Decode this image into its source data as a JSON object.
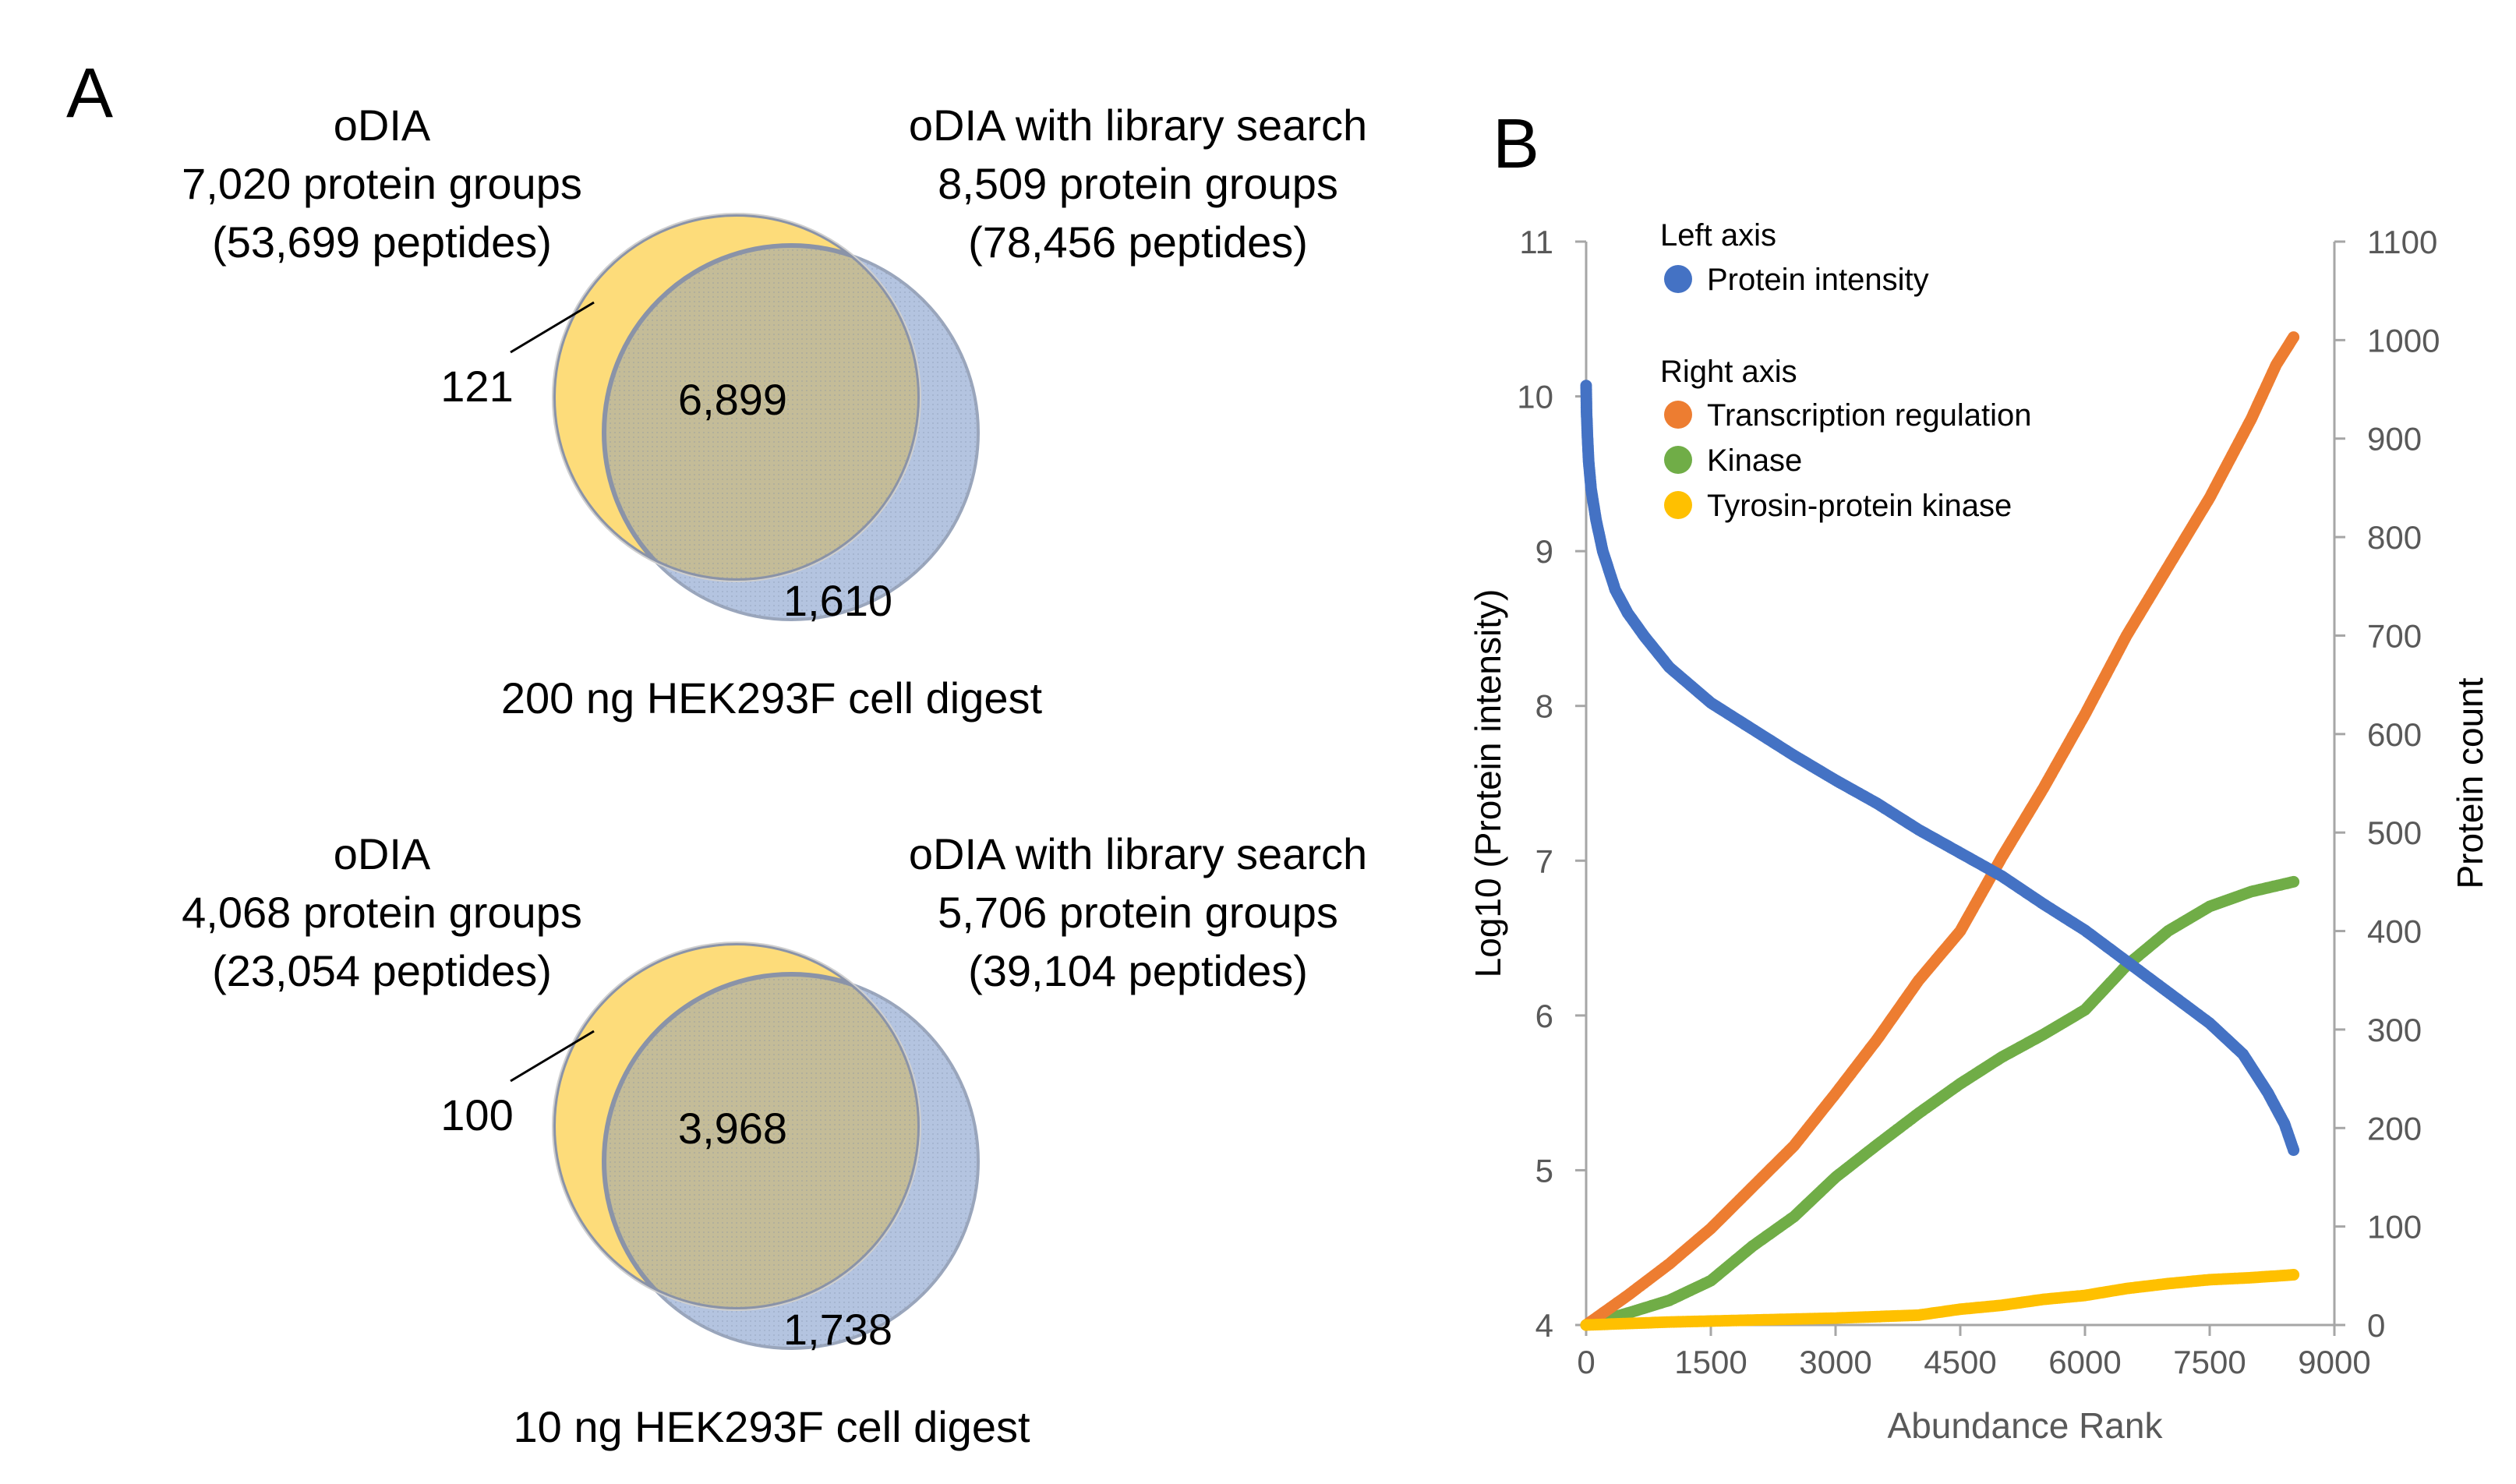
{
  "panel_a": {
    "label": "A",
    "venns": [
      {
        "left_title": "oDIA",
        "left_groups": "7,020 protein groups",
        "left_peptides": "(53,699 peptides)",
        "right_title": "oDIA with  library search",
        "right_groups": "8,509  protein groups",
        "right_peptides": "(78,456 peptides)",
        "only_left": "121",
        "overlap": "6,899",
        "only_right": "1,610",
        "caption": "200 ng HEK293F cell  digest"
      },
      {
        "left_title": "oDIA",
        "left_groups": "4,068 protein groups",
        "left_peptides": "(23,054 peptides)",
        "right_title": "oDIA with  library search",
        "right_groups": "5,706  protein groups",
        "right_peptides": "(39,104 peptides)",
        "only_left": "100",
        "overlap": "3,968",
        "only_right": "1,738",
        "caption": "10 ng HEK293F cell  digest"
      }
    ]
  },
  "colors": {
    "venn_left": "#fddc7a",
    "venn_right": "#b4c4e0",
    "venn_overlap": "#c4bc98",
    "protein_intensity": "#4472c4",
    "transcription_regulation": "#ed7d31",
    "kinase": "#70ad47",
    "tyrosin_kinase": "#ffc000"
  },
  "chart_data": {
    "type": "scatter",
    "panel_label": "B",
    "xlabel": "Abundance Rank",
    "ylabel_left": "Log10 (Protein intensity)",
    "ylabel_right": "Protein count",
    "xlim": [
      0,
      9000
    ],
    "ylim_left": [
      4,
      11
    ],
    "ylim_right": [
      0,
      1100
    ],
    "x_ticks": [
      "0",
      "1500",
      "3000",
      "4500",
      "6000",
      "7500",
      "9000"
    ],
    "y_left_ticks": [
      "4",
      "5",
      "6",
      "7",
      "8",
      "9",
      "10",
      "11"
    ],
    "y_right_ticks": [
      "0",
      "100",
      "200",
      "300",
      "400",
      "500",
      "600",
      "700",
      "800",
      "900",
      "1000",
      "1100"
    ],
    "legend": {
      "left_header": "Left axis",
      "right_header": "Right axis",
      "entries": {
        "protein_intensity": "Protein intensity",
        "transcription_regulation": "Transcription regulation",
        "kinase": "Kinase",
        "tyrosin_kinase": "Tyrosin-protein kinase"
      }
    },
    "series": [
      {
        "key": "protein_intensity",
        "name": "Protein intensity",
        "axis": "left",
        "points": [
          [
            0,
            10.07
          ],
          [
            5,
            9.9
          ],
          [
            15,
            9.75
          ],
          [
            30,
            9.58
          ],
          [
            60,
            9.4
          ],
          [
            120,
            9.2
          ],
          [
            200,
            9.0
          ],
          [
            350,
            8.75
          ],
          [
            500,
            8.6
          ],
          [
            700,
            8.45
          ],
          [
            1000,
            8.25
          ],
          [
            1500,
            8.02
          ],
          [
            2000,
            7.85
          ],
          [
            2500,
            7.68
          ],
          [
            3000,
            7.52
          ],
          [
            3500,
            7.37
          ],
          [
            4000,
            7.2
          ],
          [
            4500,
            7.05
          ],
          [
            5000,
            6.9
          ],
          [
            5500,
            6.72
          ],
          [
            6000,
            6.55
          ],
          [
            6500,
            6.35
          ],
          [
            7000,
            6.15
          ],
          [
            7500,
            5.95
          ],
          [
            7900,
            5.75
          ],
          [
            8200,
            5.5
          ],
          [
            8400,
            5.3
          ],
          [
            8509,
            5.13
          ]
        ]
      },
      {
        "key": "transcription_regulation",
        "name": "Transcription regulation",
        "axis": "right",
        "points": [
          [
            0,
            0
          ],
          [
            200,
            12
          ],
          [
            500,
            30
          ],
          [
            1000,
            62
          ],
          [
            1500,
            98
          ],
          [
            2000,
            140
          ],
          [
            2500,
            182
          ],
          [
            3000,
            235
          ],
          [
            3500,
            290
          ],
          [
            4000,
            350
          ],
          [
            4500,
            400
          ],
          [
            5000,
            475
          ],
          [
            5500,
            545
          ],
          [
            6000,
            620
          ],
          [
            6500,
            700
          ],
          [
            7000,
            770
          ],
          [
            7500,
            840
          ],
          [
            8000,
            920
          ],
          [
            8300,
            975
          ],
          [
            8509,
            1003
          ]
        ]
      },
      {
        "key": "kinase",
        "name": "Kinase",
        "axis": "right",
        "points": [
          [
            0,
            0
          ],
          [
            500,
            12
          ],
          [
            1000,
            25
          ],
          [
            1500,
            45
          ],
          [
            2000,
            80
          ],
          [
            2500,
            110
          ],
          [
            3000,
            150
          ],
          [
            3500,
            183
          ],
          [
            4000,
            215
          ],
          [
            4500,
            245
          ],
          [
            5000,
            272
          ],
          [
            5500,
            295
          ],
          [
            6000,
            320
          ],
          [
            6500,
            365
          ],
          [
            7000,
            400
          ],
          [
            7500,
            425
          ],
          [
            8000,
            440
          ],
          [
            8509,
            450
          ]
        ]
      },
      {
        "key": "tyrosin_kinase",
        "name": "Tyrosin-protein kinase",
        "axis": "right",
        "points": [
          [
            0,
            0
          ],
          [
            1000,
            3
          ],
          [
            2000,
            5
          ],
          [
            3000,
            7
          ],
          [
            4000,
            10
          ],
          [
            4500,
            16
          ],
          [
            5000,
            20
          ],
          [
            5500,
            26
          ],
          [
            6000,
            30
          ],
          [
            6500,
            37
          ],
          [
            7000,
            42
          ],
          [
            7500,
            46
          ],
          [
            8000,
            48
          ],
          [
            8509,
            51
          ]
        ]
      }
    ]
  }
}
